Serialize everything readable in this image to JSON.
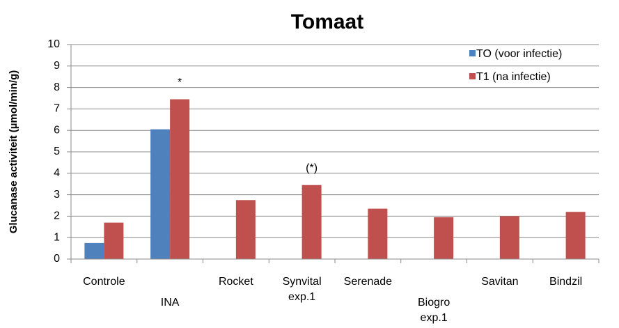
{
  "chart_data": {
    "type": "bar",
    "title": "Tomaat",
    "y_label": "Glucanase activiteit (µmol/min/g)",
    "categories": [
      "Controle",
      "INA",
      "Rocket",
      "Synvital exp.1",
      "Serenade",
      "Biogro exp.1",
      "Savitan",
      "Bindzil"
    ],
    "series": [
      {
        "name": "TO (voor infectie)",
        "color": "#4f81bd",
        "values": [
          0.75,
          6.05,
          null,
          null,
          null,
          null,
          null,
          null
        ]
      },
      {
        "name": "T1 (na infectie)",
        "color": "#c0504d",
        "values": [
          1.7,
          7.45,
          2.75,
          3.45,
          2.35,
          1.95,
          2.0,
          2.2
        ]
      }
    ],
    "annotations": [
      {
        "text": "*",
        "x": "INA"
      },
      {
        "text": "(*)",
        "x": "Synvital exp.1"
      }
    ],
    "ylim": [
      0,
      10
    ],
    "yticks": [
      0,
      1,
      2,
      3,
      4,
      5,
      6,
      7,
      8,
      9,
      10
    ],
    "grid": true,
    "legend": "top-right"
  }
}
